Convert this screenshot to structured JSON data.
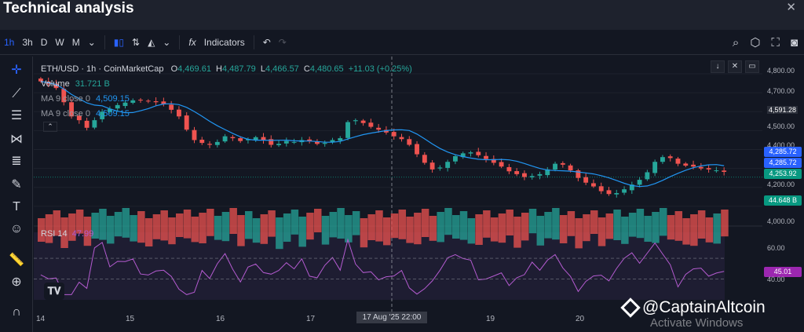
{
  "window": {
    "title": "Technical analysis",
    "close_glyph": "✕"
  },
  "toolbar": {
    "intervals": [
      "1h",
      "3h",
      "D",
      "W",
      "M"
    ],
    "active_interval": "1h",
    "indicators_label": "Indicators"
  },
  "legend": {
    "symbol": "ETH/USD · 1h · CoinMarketCap",
    "open_label": "O",
    "open": "4,469.61",
    "high_label": "H",
    "high": "4,487.79",
    "low_label": "L",
    "low": "4,466.57",
    "close_label": "C",
    "close": "4,480.65",
    "change": "+11.03 (+0.25%)",
    "volume_label": "Volume",
    "volume": "31.721 B",
    "ma1_label": "MA 9 close 0",
    "ma1_value": "4,509.15",
    "ma2_label": "MA 9 close 0",
    "ma2_value": "4,509.15",
    "rsi_label": "RSI 14",
    "rsi_value": "47.99"
  },
  "price_axis": {
    "labels": [
      "4,800.00",
      "4,700.00",
      "4,591.28",
      "4,500.00",
      "4,400.00",
      "4,200.00",
      "4,000.00",
      "60.00",
      "40.00"
    ],
    "badges": [
      {
        "text": "4,285.72",
        "color": "#2962ff"
      },
      {
        "text": "4,285.72",
        "color": "#2962ff"
      },
      {
        "text": "4,253.92",
        "color": "#089981"
      },
      {
        "text": "44.648 B",
        "color": "#089981"
      },
      {
        "text": "45.01",
        "color": "#9c27b0"
      }
    ]
  },
  "time_axis": {
    "labels": [
      "14",
      "15",
      "16",
      "17",
      "19",
      "20"
    ],
    "crosshair_label": "17 Aug '25   22:00"
  },
  "watermark": {
    "text": "@CaptainAltcoin",
    "activate": "Activate Windows"
  },
  "colors": {
    "up": "#26a69a",
    "down": "#ef5350",
    "ma": "#2196f3",
    "rsi": "#b45bd0",
    "background": "#131722"
  },
  "chart_data": {
    "type": "candlestick",
    "symbol": "ETH/USD",
    "interval": "1h",
    "ylim": [
      4000,
      4850
    ],
    "closes": [
      4760,
      4745,
      4725,
      4650,
      4575,
      4555,
      4515,
      4555,
      4600,
      4615,
      4635,
      4648,
      4660,
      4662,
      4655,
      4650,
      4640,
      4610,
      4575,
      4505,
      4450,
      4435,
      4425,
      4440,
      4470,
      4460,
      4445,
      4455,
      4465,
      4450,
      4425,
      4430,
      4445,
      4440,
      4450,
      4445,
      4430,
      4435,
      4450,
      4460,
      4545,
      4555,
      4540,
      4520,
      4505,
      4490,
      4470,
      4455,
      4425,
      4375,
      4330,
      4295,
      4305,
      4335,
      4365,
      4380,
      4385,
      4370,
      4350,
      4330,
      4310,
      4285,
      4270,
      4255,
      4260,
      4270,
      4295,
      4325,
      4320,
      4290,
      4250,
      4225,
      4205,
      4180,
      4165,
      4170,
      4190,
      4215,
      4240,
      4280,
      4335,
      4360,
      4355,
      4325,
      4315,
      4310,
      4300,
      4295,
      4290,
      4282
    ],
    "volume_last": "44.648 B",
    "rsi_last": "45.01",
    "rsi_levels": [
      60,
      40
    ]
  }
}
